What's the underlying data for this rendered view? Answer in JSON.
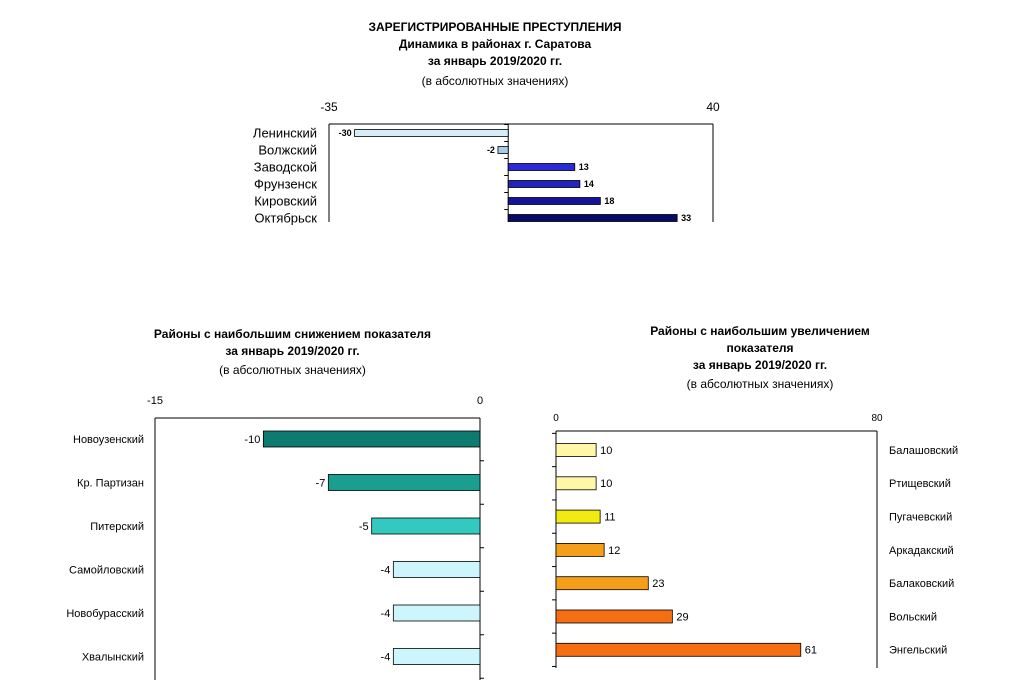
{
  "chart_data": [
    {
      "type": "bar",
      "orientation": "horizontal",
      "title": [
        "ЗАРЕГИСТРИРОВАННЫЕ ПРЕСТУПЛЕНИЯ",
        "Динамика  в районах г. Саратова",
        "за январь 2019/2020 гг."
      ],
      "subtitle": "(в абсолютных значениях)",
      "xlim": [
        -35,
        40
      ],
      "tick_labels": [
        "-35",
        "40"
      ],
      "categories": [
        "Ленинский",
        "Волжский",
        "Заводской",
        "Фрунзенск",
        "Кировский",
        "Октябрьск"
      ],
      "values": [
        -30,
        -2,
        13,
        14,
        18,
        33
      ],
      "colors": [
        "#d6ecf6",
        "#a8cce8",
        "#2b2bd6",
        "#2222c0",
        "#14149a",
        "#0a0a6a"
      ]
    },
    {
      "type": "bar",
      "orientation": "horizontal",
      "title": [
        "Районы с наибольшим снижением показателя",
        "за январь 2019/2020 гг."
      ],
      "subtitle": "(в абсолютных значениях)",
      "xlim": [
        -15,
        0
      ],
      "tick_labels": [
        "-15",
        "0"
      ],
      "categories": [
        "Новоузенский",
        "Кр. Партизан",
        "Питерский",
        "Самойловский",
        "Новобурасский",
        "Хвалынский"
      ],
      "values": [
        -10,
        -7,
        -5,
        -4,
        -4,
        -4
      ],
      "colors": [
        "#0e7b70",
        "#1a9e90",
        "#33c8c0",
        "#ccf6fc",
        "#ccf6fc",
        "#ccf6fc"
      ]
    },
    {
      "type": "bar",
      "orientation": "horizontal",
      "title": [
        "Районы с наибольшим увеличением",
        "показателя",
        "за январь 2019/2020 гг."
      ],
      "subtitle": "(в абсолютных значениях)",
      "xlim": [
        0,
        80
      ],
      "tick_labels": [
        "0",
        "80"
      ],
      "categories": [
        "Балашовский",
        "Ртищевский",
        "Пугачевский",
        "Аркадакский",
        "Балаковский",
        "Вольский",
        "Энгельский"
      ],
      "values": [
        10,
        10,
        11,
        12,
        23,
        29,
        61
      ],
      "colors": [
        "#fff6a8",
        "#fff6a8",
        "#f2ea10",
        "#f59e1a",
        "#f59e1a",
        "#f56e12",
        "#f56e12"
      ]
    }
  ]
}
